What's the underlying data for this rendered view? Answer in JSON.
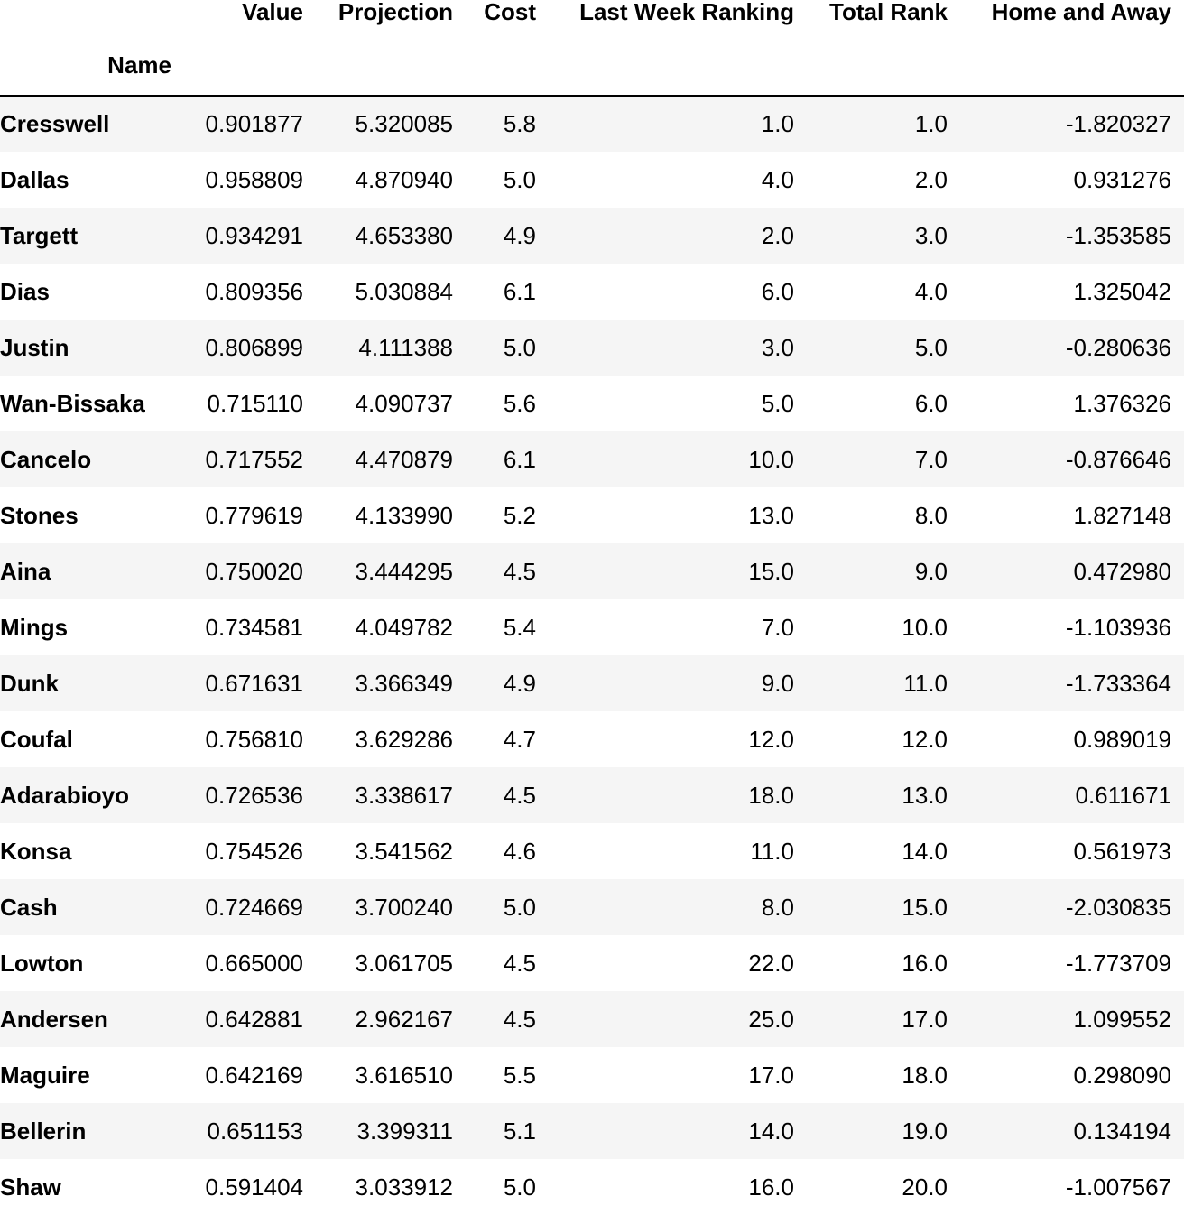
{
  "table": {
    "columns": [
      "Value",
      "Projection",
      "Cost",
      "Last Week Ranking",
      "Total Rank",
      "Home and Away"
    ],
    "index_name": "Name",
    "rows": [
      {
        "name": "Cresswell",
        "cells": [
          "0.901877",
          "5.320085",
          "5.8",
          "1.0",
          "1.0",
          "-1.820327"
        ]
      },
      {
        "name": "Dallas",
        "cells": [
          "0.958809",
          "4.870940",
          "5.0",
          "4.0",
          "2.0",
          "0.931276"
        ]
      },
      {
        "name": "Targett",
        "cells": [
          "0.934291",
          "4.653380",
          "4.9",
          "2.0",
          "3.0",
          "-1.353585"
        ]
      },
      {
        "name": "Dias",
        "cells": [
          "0.809356",
          "5.030884",
          "6.1",
          "6.0",
          "4.0",
          "1.325042"
        ]
      },
      {
        "name": "Justin",
        "cells": [
          "0.806899",
          "4.111388",
          "5.0",
          "3.0",
          "5.0",
          "-0.280636"
        ]
      },
      {
        "name": "Wan-Bissaka",
        "cells": [
          "0.715110",
          "4.090737",
          "5.6",
          "5.0",
          "6.0",
          "1.376326"
        ]
      },
      {
        "name": "Cancelo",
        "cells": [
          "0.717552",
          "4.470879",
          "6.1",
          "10.0",
          "7.0",
          "-0.876646"
        ]
      },
      {
        "name": "Stones",
        "cells": [
          "0.779619",
          "4.133990",
          "5.2",
          "13.0",
          "8.0",
          "1.827148"
        ]
      },
      {
        "name": "Aina",
        "cells": [
          "0.750020",
          "3.444295",
          "4.5",
          "15.0",
          "9.0",
          "0.472980"
        ]
      },
      {
        "name": "Mings",
        "cells": [
          "0.734581",
          "4.049782",
          "5.4",
          "7.0",
          "10.0",
          "-1.103936"
        ]
      },
      {
        "name": "Dunk",
        "cells": [
          "0.671631",
          "3.366349",
          "4.9",
          "9.0",
          "11.0",
          "-1.733364"
        ]
      },
      {
        "name": "Coufal",
        "cells": [
          "0.756810",
          "3.629286",
          "4.7",
          "12.0",
          "12.0",
          "0.989019"
        ]
      },
      {
        "name": "Adarabioyo",
        "cells": [
          "0.726536",
          "3.338617",
          "4.5",
          "18.0",
          "13.0",
          "0.611671"
        ]
      },
      {
        "name": "Konsa",
        "cells": [
          "0.754526",
          "3.541562",
          "4.6",
          "11.0",
          "14.0",
          "0.561973"
        ]
      },
      {
        "name": "Cash",
        "cells": [
          "0.724669",
          "3.700240",
          "5.0",
          "8.0",
          "15.0",
          "-2.030835"
        ]
      },
      {
        "name": "Lowton",
        "cells": [
          "0.665000",
          "3.061705",
          "4.5",
          "22.0",
          "16.0",
          "-1.773709"
        ]
      },
      {
        "name": "Andersen",
        "cells": [
          "0.642881",
          "2.962167",
          "4.5",
          "25.0",
          "17.0",
          "1.099552"
        ]
      },
      {
        "name": "Maguire",
        "cells": [
          "0.642169",
          "3.616510",
          "5.5",
          "17.0",
          "18.0",
          "0.298090"
        ]
      },
      {
        "name": "Bellerin",
        "cells": [
          "0.651153",
          "3.399311",
          "5.1",
          "14.0",
          "19.0",
          "0.134194"
        ]
      },
      {
        "name": "Shaw",
        "cells": [
          "0.591404",
          "3.033912",
          "5.0",
          "16.0",
          "20.0",
          "-1.007567"
        ]
      }
    ]
  }
}
